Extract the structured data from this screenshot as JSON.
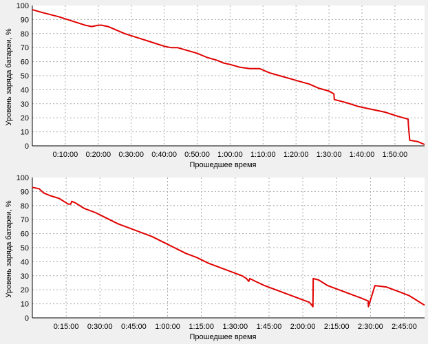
{
  "chart_data": [
    {
      "type": "line",
      "xlabel": "Прошедшее время",
      "ylabel": "Уровень заряда батареи, %",
      "ylim": [
        0,
        100
      ],
      "xlim_minutes": [
        0,
        119
      ],
      "y_ticks": [
        "0",
        "10",
        "20",
        "30",
        "40",
        "50",
        "60",
        "70",
        "80",
        "90",
        "100"
      ],
      "x_ticks": [
        "0:10:00",
        "0:20:00",
        "0:30:00",
        "0:40:00",
        "0:50:00",
        "1:00:00",
        "1:10:00",
        "1:20:00",
        "1:30:00",
        "1:40:00",
        "1:50:00"
      ],
      "grid": true,
      "line_color": "#e00000",
      "background": "#ffffff",
      "series": [
        {
          "x_minutes": [
            0,
            3,
            8,
            12,
            16,
            18,
            20,
            21,
            23,
            25,
            28,
            32,
            36,
            40,
            42,
            44,
            47,
            50,
            53,
            56,
            58,
            60,
            63,
            66,
            69,
            72,
            75,
            78,
            81,
            84,
            87,
            90,
            91.5,
            91.6,
            95,
            99,
            103,
            107,
            111,
            114,
            114.1,
            114.5,
            117,
            119
          ],
          "y": [
            97,
            95,
            92,
            89,
            86,
            85,
            86,
            86,
            85,
            83,
            80,
            77,
            74,
            71,
            70,
            70,
            68,
            66,
            63,
            61,
            59,
            58,
            56,
            55,
            55,
            52,
            50,
            48,
            46,
            44,
            41,
            39,
            37,
            33,
            31,
            28,
            26,
            24,
            21,
            19,
            15,
            4,
            3,
            1
          ]
        }
      ]
    },
    {
      "type": "line",
      "xlabel": "Прошедшее время",
      "ylabel": "Уровень заряда батареи, %",
      "ylim": [
        0,
        100
      ],
      "xlim_minutes": [
        0,
        174
      ],
      "y_ticks": [
        "0",
        "10",
        "20",
        "30",
        "40",
        "50",
        "60",
        "70",
        "80",
        "90",
        "100"
      ],
      "x_ticks": [
        "0:15:00",
        "0:30:00",
        "0:45:00",
        "1:00:00",
        "1:15:00",
        "1:30:00",
        "1:45:00",
        "2:00:00",
        "2:15:00",
        "2:30:00",
        "2:45:00"
      ],
      "grid": true,
      "line_color": "#e00000",
      "background": "#ffffff",
      "series": [
        {
          "x_minutes": [
            0,
            3,
            5,
            8,
            12,
            16,
            17,
            17.5,
            19,
            23,
            28,
            33,
            38,
            43,
            48,
            53,
            58,
            63,
            68,
            73,
            78,
            83,
            88,
            93,
            95,
            96,
            96.5,
            99,
            103,
            108,
            113,
            118,
            123,
            124.5,
            124.6,
            127,
            131,
            136,
            141,
            146,
            149,
            149.1,
            152,
            157,
            162,
            167,
            171,
            174
          ],
          "y": [
            93,
            92,
            89,
            87,
            85,
            81,
            81,
            83,
            82,
            78,
            75,
            71,
            67,
            64,
            61,
            58,
            54,
            50,
            46,
            43,
            39,
            36,
            33,
            30,
            28,
            26,
            28,
            26,
            23,
            20,
            17,
            14,
            11,
            8,
            28,
            27,
            23,
            20,
            17,
            14,
            12,
            8,
            23,
            22,
            19,
            16,
            12,
            9
          ]
        }
      ]
    }
  ]
}
